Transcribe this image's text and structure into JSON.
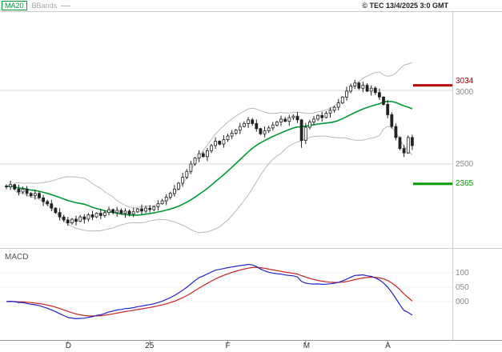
{
  "header": {
    "ma20_label": "MA20",
    "bbands_label": "BBands",
    "copyright": "© TEC 13/4/2025 3:0 GMT"
  },
  "price_axis": {
    "resistance_label": "3034",
    "grid_label_3000": "3000",
    "grid_label_2500": "2500",
    "support_label": "2365"
  },
  "macd_axis": {
    "label": "MACD",
    "tick_100": "100",
    "tick_050": "050",
    "tick_000": "000"
  },
  "colors": {
    "ma20": "#009933",
    "bbands": "#b9b9b9",
    "candle": "#222222",
    "resistance": "#b30000",
    "support": "#009900",
    "macd": "#2222cc",
    "signal": "#cc2222",
    "grid": "#d9d9d9",
    "macd_grid": "#f0f0f0",
    "tick": "#888888"
  },
  "chart_data": {
    "type": "candlestick",
    "title": "",
    "description": "Daily OHLC price chart with MA20, Bollinger Bands (20,2), horizontal resistance/support levels, and a MACD(12,26,9) sub-panel",
    "x_ticks": [
      {
        "label": "D",
        "index": 15
      },
      {
        "label": "25",
        "index": 35
      },
      {
        "label": "F",
        "index": 54
      },
      {
        "label": "M",
        "index": 73
      },
      {
        "label": "A",
        "index": 93
      }
    ],
    "price_panel": {
      "ylim": [
        2050,
        3550
      ],
      "gridlines": [
        3000,
        2500
      ],
      "resistance_level": 3034,
      "support_level": 2365,
      "overlays": [
        "MA20",
        "Bollinger Bands (20,2)"
      ],
      "candles_ohlc": [
        [
          2350,
          2362,
          2329,
          2345
        ],
        [
          2345,
          2387,
          2324,
          2360
        ],
        [
          2360,
          2366,
          2322,
          2330
        ],
        [
          2330,
          2360,
          2286,
          2310
        ],
        [
          2310,
          2346,
          2296,
          2330
        ],
        [
          2330,
          2351,
          2281,
          2300
        ],
        [
          2300,
          2308,
          2273,
          2285
        ],
        [
          2285,
          2324,
          2258,
          2300
        ],
        [
          2300,
          2314,
          2264,
          2270
        ],
        [
          2270,
          2289,
          2215,
          2245
        ],
        [
          2245,
          2257,
          2214,
          2230
        ],
        [
          2230,
          2257,
          2179,
          2200
        ],
        [
          2200,
          2206,
          2162,
          2170
        ],
        [
          2170,
          2200,
          2116,
          2140
        ],
        [
          2140,
          2156,
          2106,
          2120
        ],
        [
          2120,
          2141,
          2081,
          2100
        ],
        [
          2100,
          2133,
          2088,
          2125
        ],
        [
          2125,
          2149,
          2083,
          2110
        ],
        [
          2110,
          2154,
          2104,
          2140
        ],
        [
          2140,
          2159,
          2095,
          2125
        ],
        [
          2125,
          2167,
          2109,
          2155
        ],
        [
          2155,
          2182,
          2119,
          2140
        ],
        [
          2140,
          2171,
          2132,
          2165
        ],
        [
          2165,
          2195,
          2126,
          2150
        ],
        [
          2150,
          2186,
          2136,
          2170
        ],
        [
          2170,
          2211,
          2151,
          2190
        ],
        [
          2190,
          2198,
          2158,
          2170
        ],
        [
          2170,
          2209,
          2143,
          2185
        ],
        [
          2185,
          2199,
          2159,
          2165
        ],
        [
          2165,
          2199,
          2135,
          2180
        ],
        [
          2180,
          2192,
          2144,
          2160
        ],
        [
          2160,
          2202,
          2139,
          2175
        ],
        [
          2175,
          2201,
          2167,
          2195
        ],
        [
          2195,
          2225,
          2156,
          2180
        ],
        [
          2180,
          2216,
          2166,
          2200
        ],
        [
          2200,
          2221,
          2171,
          2190
        ],
        [
          2190,
          2218,
          2178,
          2210
        ],
        [
          2210,
          2254,
          2183,
          2230
        ],
        [
          2230,
          2264,
          2224,
          2250
        ],
        [
          2250,
          2294,
          2220,
          2275
        ],
        [
          2275,
          2312,
          2259,
          2300
        ],
        [
          2300,
          2357,
          2279,
          2330
        ],
        [
          2330,
          2376,
          2322,
          2370
        ],
        [
          2370,
          2440,
          2346,
          2410
        ],
        [
          2410,
          2466,
          2396,
          2450
        ],
        [
          2450,
          2521,
          2431,
          2500
        ],
        [
          2500,
          2548,
          2488,
          2540
        ],
        [
          2540,
          2594,
          2513,
          2570
        ],
        [
          2570,
          2584,
          2544,
          2550
        ],
        [
          2550,
          2609,
          2520,
          2590
        ],
        [
          2590,
          2637,
          2574,
          2625
        ],
        [
          2625,
          2682,
          2604,
          2655
        ],
        [
          2655,
          2661,
          2627,
          2635
        ],
        [
          2635,
          2695,
          2611,
          2665
        ],
        [
          2665,
          2706,
          2651,
          2690
        ],
        [
          2690,
          2731,
          2671,
          2710
        ],
        [
          2710,
          2738,
          2698,
          2730
        ],
        [
          2730,
          2779,
          2703,
          2755
        ],
        [
          2755,
          2789,
          2749,
          2775
        ],
        [
          2775,
          2819,
          2745,
          2800
        ],
        [
          2800,
          2812,
          2759,
          2775
        ],
        [
          2775,
          2802,
          2719,
          2740
        ],
        [
          2740,
          2746,
          2697,
          2705
        ],
        [
          2705,
          2755,
          2681,
          2725
        ],
        [
          2725,
          2761,
          2711,
          2745
        ],
        [
          2745,
          2786,
          2726,
          2765
        ],
        [
          2765,
          2793,
          2753,
          2785
        ],
        [
          2785,
          2829,
          2758,
          2805
        ],
        [
          2805,
          2819,
          2784,
          2790
        ],
        [
          2790,
          2834,
          2760,
          2815
        ],
        [
          2815,
          2837,
          2799,
          2825
        ],
        [
          2825,
          2852,
          2779,
          2800
        ],
        [
          2800,
          2806,
          2610,
          2660
        ],
        [
          2660,
          2780,
          2636,
          2750
        ],
        [
          2750,
          2801,
          2736,
          2785
        ],
        [
          2785,
          2826,
          2766,
          2805
        ],
        [
          2805,
          2838,
          2793,
          2830
        ],
        [
          2830,
          2854,
          2788,
          2815
        ],
        [
          2815,
          2859,
          2809,
          2845
        ],
        [
          2845,
          2884,
          2815,
          2865
        ],
        [
          2865,
          2897,
          2849,
          2885
        ],
        [
          2885,
          2942,
          2864,
          2915
        ],
        [
          2915,
          2961,
          2907,
          2955
        ],
        [
          2955,
          3025,
          2931,
          2995
        ],
        [
          2995,
          3046,
          2981,
          3030
        ],
        [
          3030,
          3071,
          3011,
          3050
        ],
        [
          3050,
          3058,
          3003,
          3015
        ],
        [
          3015,
          3059,
          2988,
          3035
        ],
        [
          3035,
          3049,
          2989,
          2995
        ],
        [
          2995,
          3034,
          2965,
          3015
        ],
        [
          3015,
          3027,
          2969,
          2985
        ],
        [
          2985,
          3012,
          2934,
          2955
        ],
        [
          2955,
          2961,
          2897,
          2905
        ],
        [
          2905,
          2935,
          2811,
          2835
        ],
        [
          2835,
          2851,
          2741,
          2755
        ],
        [
          2755,
          2776,
          2661,
          2680
        ],
        [
          2680,
          2688,
          2593,
          2605
        ],
        [
          2605,
          2629,
          2548,
          2575
        ],
        [
          2575,
          2694,
          2569,
          2680
        ],
        [
          2680,
          2699,
          2595,
          2625
        ]
      ]
    },
    "macd_panel": {
      "indicator": "MACD(12,26,9)",
      "ticks": [
        100,
        50,
        0
      ],
      "ylim": [
        -130,
        170
      ],
      "series": [
        "MACD",
        "Signal"
      ]
    }
  }
}
